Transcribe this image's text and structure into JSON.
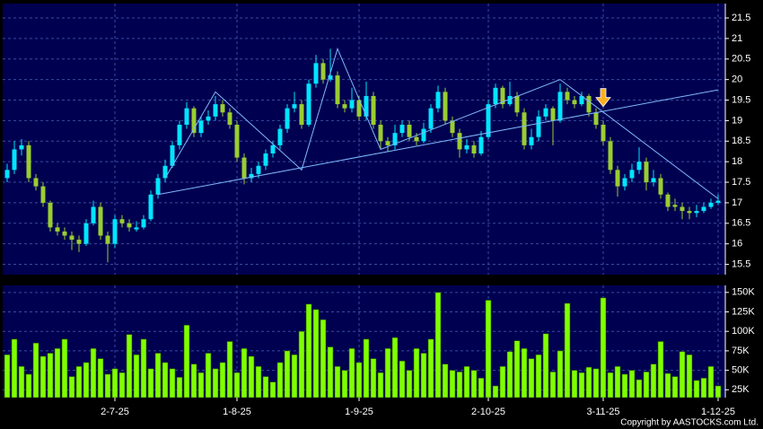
{
  "chart_data": [
    {
      "type": "candlestick",
      "up_color": "#00e5ff",
      "down_color": "#9acd32",
      "panel_color": "#000050",
      "grid": true,
      "ylim": [
        15.25,
        21.85
      ],
      "yticks": [
        15.5,
        16,
        16.5,
        17,
        17.5,
        18,
        18.5,
        19,
        19.5,
        20,
        20.5,
        21,
        21.5
      ],
      "ohlc": [
        [
          17.6,
          17.95,
          17.5,
          17.8
        ],
        [
          17.8,
          18.5,
          17.7,
          18.3
        ],
        [
          18.3,
          18.55,
          18.15,
          18.4
        ],
        [
          18.4,
          18.5,
          17.5,
          17.6
        ],
        [
          17.6,
          17.7,
          17.3,
          17.4
        ],
        [
          17.4,
          17.5,
          16.9,
          17.0
        ],
        [
          17.0,
          17.05,
          16.3,
          16.4
        ],
        [
          16.4,
          16.5,
          16.2,
          16.3
        ],
        [
          16.3,
          16.4,
          16.1,
          16.2
        ],
        [
          16.2,
          16.3,
          15.85,
          16.1
        ],
        [
          16.1,
          16.2,
          15.8,
          16.0
        ],
        [
          16.0,
          16.6,
          15.95,
          16.5
        ],
        [
          16.5,
          17.05,
          16.45,
          16.9
        ],
        [
          16.9,
          17.0,
          16.1,
          16.2
        ],
        [
          16.2,
          16.3,
          15.55,
          16.0
        ],
        [
          16.0,
          16.7,
          15.9,
          16.6
        ],
        [
          16.6,
          16.7,
          16.4,
          16.5
        ],
        [
          16.5,
          16.6,
          16.3,
          16.4
        ],
        [
          16.35,
          16.55,
          16.3,
          16.4
        ],
        [
          16.4,
          16.7,
          16.35,
          16.6
        ],
        [
          16.6,
          17.3,
          16.55,
          17.2
        ],
        [
          17.2,
          17.7,
          17.1,
          17.6
        ],
        [
          17.6,
          18.05,
          17.5,
          17.9
        ],
        [
          17.9,
          18.5,
          17.85,
          18.4
        ],
        [
          18.4,
          19.0,
          18.3,
          18.9
        ],
        [
          18.9,
          19.45,
          18.8,
          19.3
        ],
        [
          19.3,
          19.35,
          18.6,
          18.7
        ],
        [
          18.7,
          19.1,
          18.6,
          19.0
        ],
        [
          19.0,
          19.25,
          18.9,
          19.1
        ],
        [
          19.1,
          19.6,
          19.0,
          19.4
        ],
        [
          19.4,
          19.5,
          19.1,
          19.2
        ],
        [
          19.2,
          19.3,
          18.8,
          18.9
        ],
        [
          18.9,
          19.0,
          18.0,
          18.1
        ],
        [
          18.1,
          18.2,
          17.45,
          17.6
        ],
        [
          17.6,
          17.85,
          17.5,
          17.7
        ],
        [
          17.7,
          18.0,
          17.6,
          17.9
        ],
        [
          17.9,
          18.3,
          17.8,
          18.2
        ],
        [
          18.2,
          18.5,
          18.1,
          18.4
        ],
        [
          18.4,
          18.9,
          18.3,
          18.8
        ],
        [
          18.8,
          19.4,
          18.7,
          19.3
        ],
        [
          19.3,
          19.7,
          19.2,
          19.4
        ],
        [
          19.4,
          19.5,
          18.8,
          18.9
        ],
        [
          18.9,
          20.0,
          18.85,
          19.9
        ],
        [
          19.9,
          20.6,
          19.8,
          20.4
        ],
        [
          20.4,
          20.5,
          19.9,
          20.0
        ],
        [
          20.0,
          20.75,
          19.95,
          20.1
        ],
        [
          20.1,
          20.2,
          19.3,
          19.4
        ],
        [
          19.4,
          19.5,
          19.2,
          19.3
        ],
        [
          19.3,
          19.8,
          19.2,
          19.5
        ],
        [
          19.5,
          19.6,
          19.0,
          19.1
        ],
        [
          19.1,
          19.95,
          19.0,
          19.6
        ],
        [
          19.6,
          19.7,
          18.8,
          18.9
        ],
        [
          18.9,
          19.0,
          18.3,
          18.5
        ],
        [
          18.5,
          18.6,
          18.25,
          18.4
        ],
        [
          18.4,
          18.9,
          18.3,
          18.7
        ],
        [
          18.7,
          19.0,
          18.6,
          18.9
        ],
        [
          18.9,
          19.0,
          18.5,
          18.6
        ],
        [
          18.6,
          18.7,
          18.4,
          18.5
        ],
        [
          18.5,
          18.95,
          18.45,
          18.8
        ],
        [
          18.8,
          19.4,
          18.7,
          19.3
        ],
        [
          19.3,
          19.85,
          19.2,
          19.7
        ],
        [
          19.7,
          19.8,
          18.9,
          19.0
        ],
        [
          19.0,
          19.1,
          18.6,
          18.7
        ],
        [
          18.7,
          18.8,
          18.1,
          18.3
        ],
        [
          18.3,
          18.55,
          18.2,
          18.4
        ],
        [
          18.4,
          18.5,
          18.1,
          18.2
        ],
        [
          18.2,
          18.75,
          18.15,
          18.6
        ],
        [
          18.6,
          19.5,
          18.55,
          19.4
        ],
        [
          19.4,
          19.9,
          19.3,
          19.8
        ],
        [
          19.8,
          19.85,
          19.3,
          19.4
        ],
        [
          19.4,
          19.95,
          19.35,
          19.6
        ],
        [
          19.6,
          19.7,
          19.1,
          19.2
        ],
        [
          19.2,
          19.3,
          18.3,
          18.4
        ],
        [
          18.4,
          18.8,
          18.3,
          18.6
        ],
        [
          18.6,
          19.25,
          18.5,
          19.1
        ],
        [
          19.1,
          19.4,
          19.0,
          19.3
        ],
        [
          19.3,
          19.35,
          18.4,
          19.0
        ],
        [
          19.0,
          19.9,
          18.95,
          19.7
        ],
        [
          19.7,
          19.8,
          19.4,
          19.5
        ],
        [
          19.5,
          19.6,
          19.3,
          19.4
        ],
        [
          19.4,
          19.7,
          19.35,
          19.6
        ],
        [
          19.6,
          19.65,
          19.1,
          19.2
        ],
        [
          19.2,
          19.3,
          18.8,
          18.9
        ],
        [
          18.9,
          19.0,
          18.4,
          18.5
        ],
        [
          18.5,
          18.6,
          17.7,
          17.8
        ],
        [
          17.8,
          17.9,
          17.15,
          17.4
        ],
        [
          17.4,
          17.7,
          17.3,
          17.6
        ],
        [
          17.6,
          17.95,
          17.5,
          17.8
        ],
        [
          17.8,
          18.35,
          17.7,
          18.0
        ],
        [
          18.0,
          18.1,
          17.3,
          17.5
        ],
        [
          17.5,
          17.8,
          17.4,
          17.6
        ],
        [
          17.6,
          17.7,
          17.1,
          17.2
        ],
        [
          17.2,
          17.25,
          16.8,
          16.9
        ],
        [
          16.95,
          17.1,
          16.8,
          16.9
        ],
        [
          16.9,
          17.0,
          16.6,
          16.8
        ],
        [
          16.8,
          16.9,
          16.6,
          16.75
        ],
        [
          16.75,
          16.95,
          16.65,
          16.8
        ],
        [
          16.8,
          17.0,
          16.75,
          16.9
        ],
        [
          16.9,
          17.1,
          16.85,
          17.0
        ],
        [
          17.0,
          17.2,
          16.95,
          17.05
        ]
      ],
      "trendlines": [
        {
          "color": "#7fb8ff",
          "points": [
            [
              21,
              17.2
            ],
            [
              99,
              19.75
            ]
          ]
        },
        {
          "color": "#7fb8ff",
          "points": [
            [
              22,
              17.6
            ],
            [
              29,
              19.7
            ],
            [
              41,
              17.8
            ],
            [
              46,
              20.75
            ],
            [
              52,
              18.3
            ],
            [
              77,
              20.0
            ],
            [
              99,
              17.1
            ]
          ]
        }
      ],
      "arrow": {
        "index": 83,
        "price": 19.3,
        "color": "#ffb020"
      }
    },
    {
      "type": "bar",
      "color": "#80ff00",
      "panel_color": "#000050",
      "grid": true,
      "ylim": [
        15000,
        159000
      ],
      "yticks": [
        {
          "value": 25000,
          "label": "25K"
        },
        {
          "value": 50000,
          "label": "50K"
        },
        {
          "value": 75000,
          "label": "75K"
        },
        {
          "value": 100000,
          "label": "100K"
        },
        {
          "value": 125000,
          "label": "125K"
        },
        {
          "value": 150000,
          "label": "150K"
        }
      ],
      "categories": [
        null,
        null,
        null,
        null,
        null,
        null,
        null,
        null,
        null,
        null,
        null,
        null,
        null,
        null,
        null,
        "2-7-25",
        null,
        null,
        null,
        null,
        null,
        null,
        null,
        null,
        null,
        null,
        null,
        null,
        null,
        null,
        null,
        null,
        "1-8-25",
        null,
        null,
        null,
        null,
        null,
        null,
        null,
        null,
        null,
        null,
        null,
        null,
        null,
        null,
        null,
        null,
        "1-9-25",
        null,
        null,
        null,
        null,
        null,
        null,
        null,
        null,
        null,
        null,
        null,
        null,
        null,
        null,
        null,
        null,
        null,
        "2-10-25",
        null,
        null,
        null,
        null,
        null,
        null,
        null,
        null,
        null,
        null,
        null,
        null,
        null,
        null,
        null,
        "3-11-25",
        null,
        null,
        null,
        null,
        null,
        null,
        null,
        null,
        null,
        null,
        null,
        null,
        null,
        null,
        null,
        "1-12-25"
      ],
      "values": [
        70000,
        90000,
        55000,
        45000,
        85000,
        68000,
        72000,
        78000,
        90000,
        42000,
        55000,
        60000,
        78000,
        65000,
        45000,
        52000,
        47000,
        96000,
        70000,
        90000,
        52000,
        72000,
        60000,
        52000,
        41000,
        108000,
        58000,
        47000,
        72000,
        52000,
        60000,
        87000,
        47000,
        78000,
        68000,
        55000,
        42000,
        35000,
        60000,
        75000,
        70000,
        100000,
        135000,
        128000,
        115000,
        80000,
        55000,
        50000,
        78000,
        60000,
        90000,
        65000,
        47000,
        78000,
        92000,
        62000,
        50000,
        78000,
        72000,
        90000,
        150000,
        58000,
        50000,
        48000,
        55000,
        50000,
        40000,
        140000,
        30000,
        55000,
        74000,
        88000,
        78000,
        65000,
        70000,
        97000,
        48000,
        75000,
        136000,
        50000,
        47000,
        54000,
        52000,
        143000,
        47000,
        55000,
        45000,
        50000,
        38000,
        48000,
        58000,
        87000,
        46000,
        42000,
        74000,
        70000,
        37000,
        40000,
        55000,
        30000
      ]
    }
  ],
  "copyright": "Copyright by AASTOCKS.com Ltd."
}
